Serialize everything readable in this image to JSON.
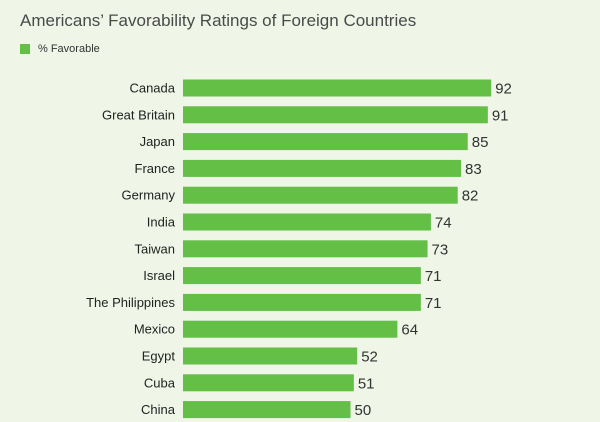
{
  "colors": {
    "background": "#eff6e7",
    "bar": "#63bf46",
    "text": "#222222"
  },
  "chart_data": {
    "type": "bar",
    "orientation": "horizontal",
    "title": "Americans’ Favorability Ratings of Foreign Countries",
    "legend": {
      "position": "top-left",
      "entries": [
        "% Favorable"
      ]
    },
    "series": [
      {
        "name": "% Favorable",
        "values": [
          92,
          91,
          85,
          83,
          82,
          74,
          73,
          71,
          71,
          64,
          52,
          51,
          50
        ]
      }
    ],
    "categories": [
      "Canada",
      "Great Britain",
      "Japan",
      "France",
      "Germany",
      "India",
      "Taiwan",
      "Israel",
      "The Philippines",
      "Mexico",
      "Egypt",
      "Cuba",
      "China"
    ],
    "xlim": [
      0,
      100
    ],
    "grid": false
  }
}
